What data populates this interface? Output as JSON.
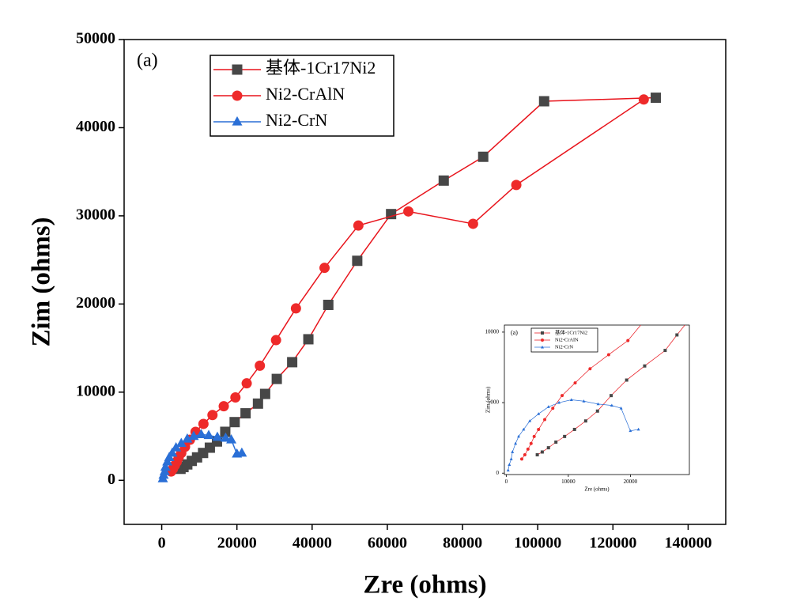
{
  "chart_data": [
    {
      "type": "line",
      "annotation": "(a)",
      "xlabel": "Zre (ohms)",
      "ylabel": "Zim (ohms)",
      "xlim": [
        -10000,
        150000
      ],
      "ylim": [
        -5000,
        50000
      ],
      "xticks": [
        0,
        20000,
        40000,
        60000,
        80000,
        100000,
        120000,
        140000
      ],
      "yticks": [
        0,
        10000,
        20000,
        30000,
        40000,
        50000
      ],
      "legend": "upper left",
      "series": [
        {
          "name": "基体-1Cr17Ni2",
          "color": "#474747",
          "line_color": "#e8141c",
          "marker": "square",
          "x": [
            5000,
            5800,
            6800,
            8000,
            9400,
            11000,
            12800,
            14700,
            16900,
            19400,
            22300,
            25600,
            27500,
            30600,
            34700,
            39000,
            44300,
            52000,
            61000,
            75000,
            85500,
            101700,
            131400
          ],
          "values": [
            1300,
            1500,
            1800,
            2200,
            2600,
            3100,
            3700,
            4400,
            5500,
            6600,
            7600,
            8700,
            9800,
            11500,
            13400,
            16000,
            19900,
            24900,
            30200,
            34000,
            36700,
            43000,
            43400
          ]
        },
        {
          "name": "Ni2-CrAlN",
          "color": "#ee2a2a",
          "line_color": "#e8141c",
          "marker": "circle",
          "x": [
            2500,
            3000,
            3500,
            4000,
            4500,
            5200,
            6200,
            7500,
            9000,
            11100,
            13500,
            16500,
            19600,
            22600,
            26100,
            30400,
            35700,
            43300,
            52300,
            65600,
            82800,
            94300,
            128200
          ],
          "values": [
            1000,
            1300,
            1700,
            2100,
            2600,
            3100,
            3800,
            4600,
            5500,
            6400,
            7400,
            8400,
            9400,
            11000,
            13000,
            15900,
            19500,
            24100,
            28900,
            30500,
            29100,
            33500,
            43200
          ]
        },
        {
          "name": "Ni2-CrN",
          "color": "#2a6fd6",
          "line_color": "#2a6fd6",
          "marker": "triangle",
          "x": [
            300,
            500,
            800,
            1000,
            1500,
            2000,
            2800,
            3800,
            5200,
            6800,
            8500,
            10500,
            12500,
            14800,
            17000,
            18500,
            20000,
            21300
          ],
          "values": [
            200,
            600,
            1000,
            1500,
            2100,
            2600,
            3100,
            3700,
            4200,
            4700,
            5000,
            5200,
            5100,
            4900,
            4800,
            4600,
            3000,
            3100
          ]
        }
      ]
    },
    {
      "type": "line",
      "annotation": "(a)",
      "xlabel": "Zre (ohms)",
      "ylabel": "Zim (ohms)",
      "xlim": [
        -300,
        29500
      ],
      "ylim": [
        -100,
        10500
      ],
      "xticks": [
        0,
        10000,
        20000
      ],
      "yticks": [
        0,
        5000,
        10000
      ],
      "legend": "upper left"
    }
  ]
}
